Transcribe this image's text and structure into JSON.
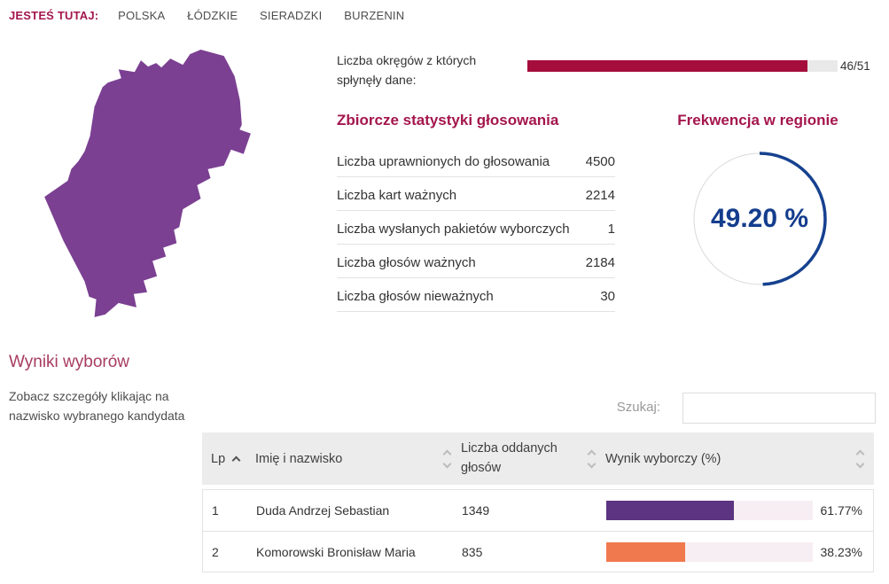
{
  "breadcrumb": {
    "label": "JESTEŚ TUTAJ:",
    "items": [
      "POLSKA",
      "ŁÓDZKIE",
      "SIERADZKI",
      "BURZENIN"
    ]
  },
  "progress": {
    "label": "Liczba okręgów z których spłynęły dane:",
    "value": 46,
    "max": 51,
    "value_text": "46/51"
  },
  "stats": {
    "title": "Zbiorcze statystyki głosowania",
    "rows": [
      {
        "label": "Liczba uprawnionych do głosowania",
        "value": "4500"
      },
      {
        "label": "Liczba kart ważnych",
        "value": "2214"
      },
      {
        "label": "Liczba wysłanych pakietów wyborczych",
        "value": "1"
      },
      {
        "label": "Liczba głosów ważnych",
        "value": "2184"
      },
      {
        "label": "Liczba głosów nieważnych",
        "value": "30"
      }
    ]
  },
  "turnout": {
    "title": "Frekwencja w regionie",
    "percent": 49.2,
    "value_text": "49.20 %"
  },
  "results": {
    "title": "Wyniki wyborów",
    "hint": "Zobacz szczegóły klikając na nazwisko wybranego kandydata",
    "search_label": "Szukaj:",
    "search_value": "",
    "table": {
      "columns": {
        "lp": "Lp",
        "name": "Imię i nazwisko",
        "votes": "Liczba oddanych głosów",
        "result": "Wynik wyborczy (%)"
      },
      "rows": [
        {
          "lp": "1",
          "name": "Duda Andrzej Sebastian",
          "votes": "1349",
          "percent": 61.77,
          "percent_text": "61.77%",
          "bar_color": "#5c3482"
        },
        {
          "lp": "2",
          "name": "Komorowski Bronisław Maria",
          "votes": "835",
          "percent": 38.23,
          "percent_text": "38.23%",
          "bar_color": "#f0794d"
        }
      ]
    }
  },
  "map": {
    "region": "Burzenin",
    "fill": "#7b4092"
  },
  "colors": {
    "crimson_bar": "#a50d3c",
    "crimson_heading": "#a4164d",
    "navy": "#16418f",
    "bar_track": "#f7eef3",
    "header_bg": "#ececec"
  }
}
